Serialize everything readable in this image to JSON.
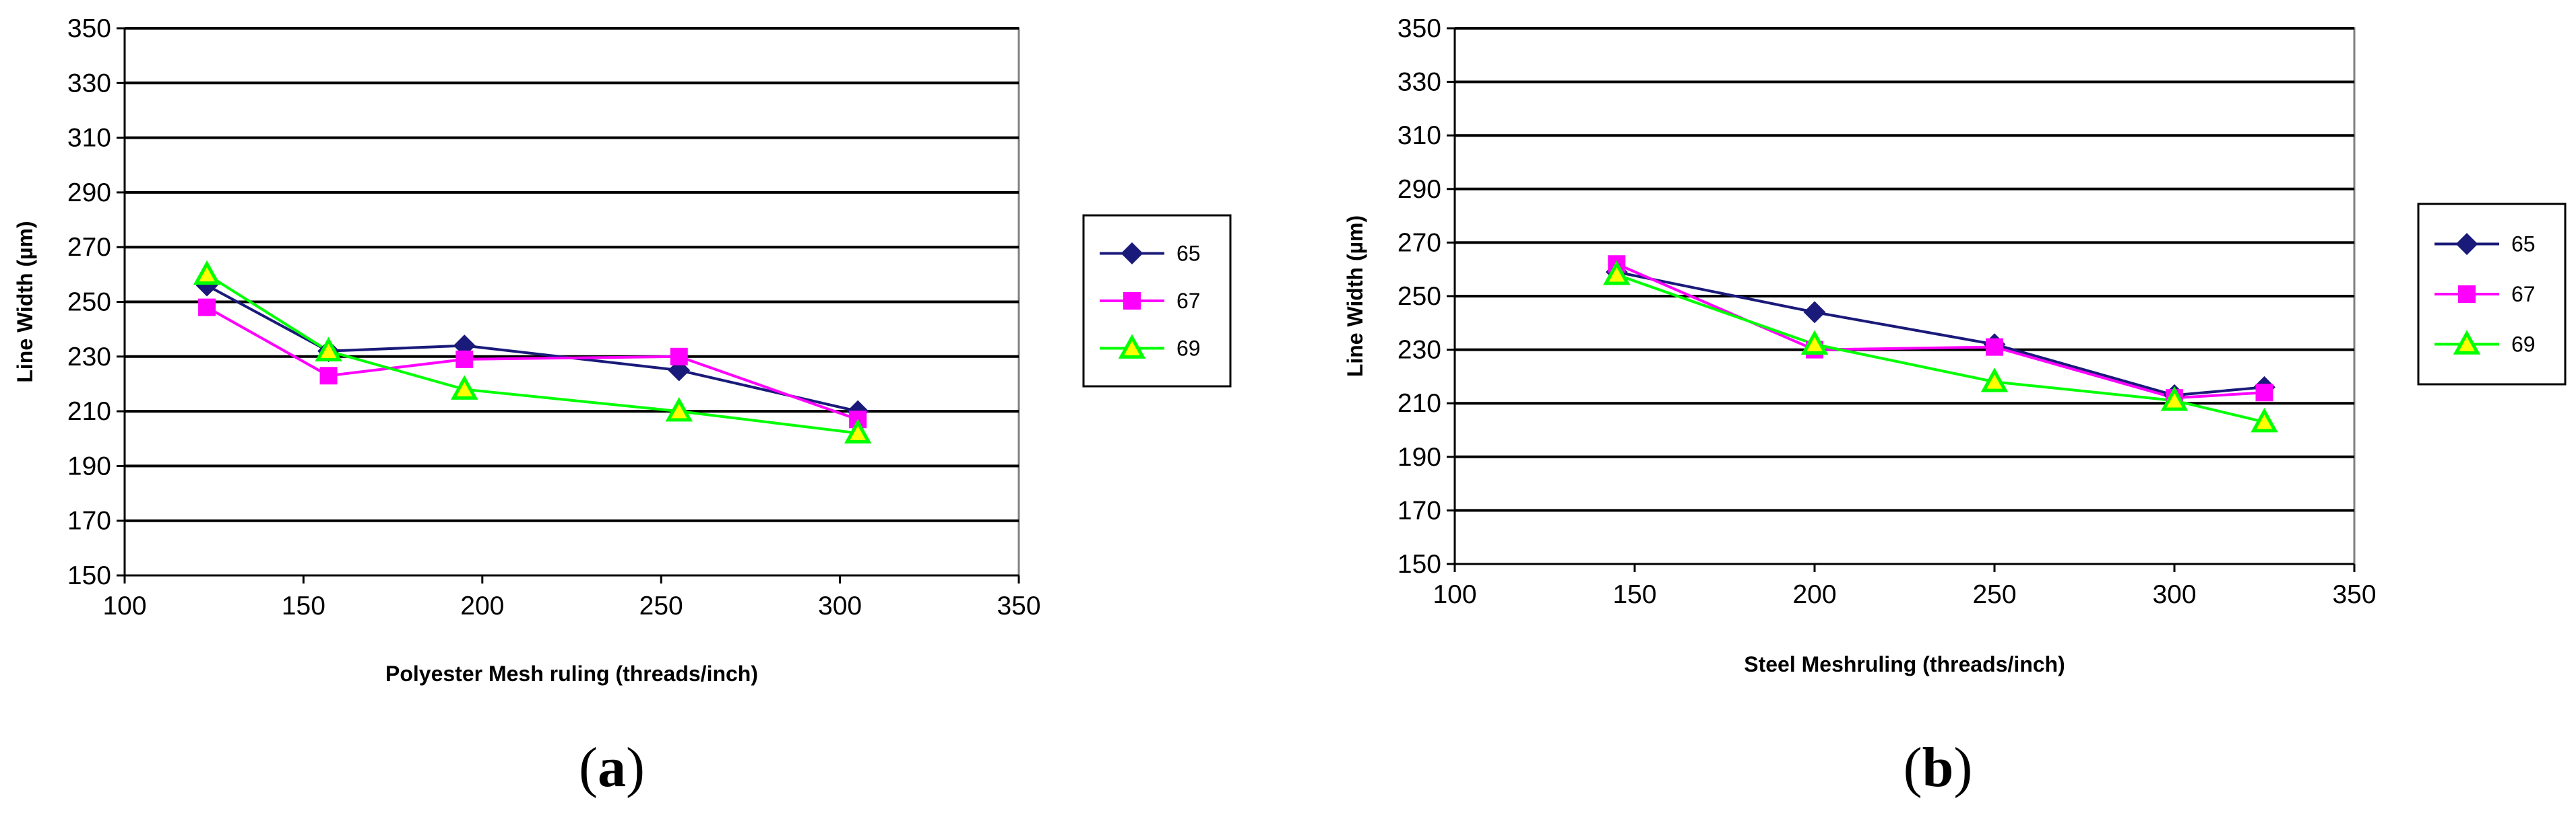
{
  "chart_data": [
    {
      "type": "line",
      "panel": "a",
      "title": "",
      "xlabel": "Polyester Mesh ruling (threads/inch)",
      "ylabel": "Line Width (µm)",
      "xlim": [
        100,
        350
      ],
      "ylim": [
        150,
        350
      ],
      "xticks": [
        100,
        150,
        200,
        250,
        300,
        350
      ],
      "yticks": [
        150,
        170,
        190,
        210,
        230,
        250,
        270,
        290,
        310,
        330,
        350
      ],
      "grid": "horizontal",
      "legend": "right",
      "series": [
        {
          "name": "65",
          "color": "#1a1a7a",
          "marker": "diamond",
          "x": [
            123,
            157,
            195,
            255,
            305
          ],
          "y": [
            256,
            232,
            234,
            225,
            210
          ]
        },
        {
          "name": "67",
          "color": "#ff00ff",
          "marker": "square",
          "x": [
            123,
            157,
            195,
            255,
            305
          ],
          "y": [
            248,
            223,
            229,
            230,
            207
          ]
        },
        {
          "name": "69",
          "color": "#00ff00",
          "marker": "triangle",
          "x": [
            123,
            157,
            195,
            255,
            305
          ],
          "y": [
            260,
            232,
            218,
            210,
            202
          ]
        }
      ]
    },
    {
      "type": "line",
      "panel": "b",
      "title": "",
      "xlabel": "Steel Meshruling (threads/inch)",
      "ylabel": "Line Width (µm)",
      "xlim": [
        100,
        350
      ],
      "ylim": [
        150,
        350
      ],
      "xticks": [
        100,
        150,
        200,
        250,
        300,
        350
      ],
      "yticks": [
        150,
        170,
        190,
        210,
        230,
        250,
        270,
        290,
        310,
        330,
        350
      ],
      "grid": "horizontal",
      "legend": "right",
      "series": [
        {
          "name": "65",
          "color": "#1a1a7a",
          "marker": "diamond",
          "x": [
            145,
            200,
            250,
            300,
            325
          ],
          "y": [
            259,
            244,
            232,
            213,
            216
          ]
        },
        {
          "name": "67",
          "color": "#ff00ff",
          "marker": "square",
          "x": [
            145,
            200,
            250,
            300,
            325
          ],
          "y": [
            262,
            230,
            231,
            212,
            214
          ]
        },
        {
          "name": "69",
          "color": "#00ff00",
          "marker": "triangle",
          "x": [
            145,
            200,
            250,
            300,
            325
          ],
          "y": [
            258,
            232,
            218,
            211,
            203
          ]
        }
      ]
    }
  ],
  "labels": {
    "a": {
      "open": "(",
      "letter": "a",
      "close": ")"
    },
    "b": {
      "open": "(",
      "letter": "b",
      "close": ")"
    }
  }
}
